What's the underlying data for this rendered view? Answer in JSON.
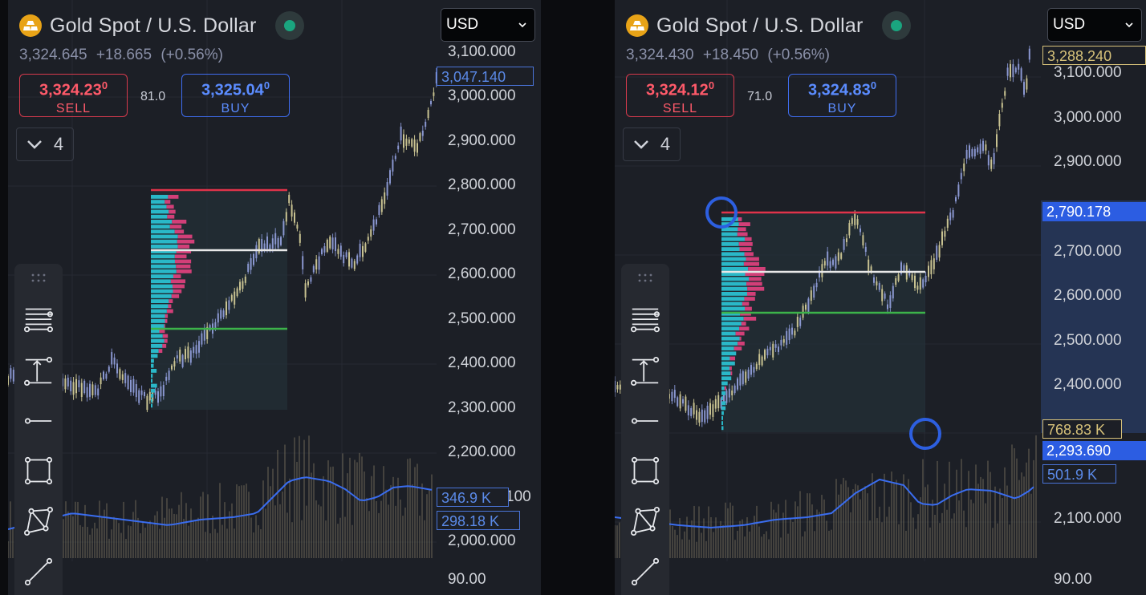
{
  "left": {
    "title": "Gold Spot / U.S. Dollar",
    "last_price": "3,324.645",
    "change": "+18.665",
    "change_pct": "(+0.56%)",
    "sell": {
      "price_main": "3,324.23",
      "price_sup": "0",
      "label": "SELL"
    },
    "spread": "81.0",
    "buy": {
      "price_main": "3,325.04",
      "price_sup": "0",
      "label": "BUY"
    },
    "collapse_count": "4",
    "currency": "USD",
    "y_ticks": [
      "3,100.000",
      "3,000.000",
      "2,900.000",
      "2,800.000",
      "2,700.000",
      "2,600.000",
      "2,500.000",
      "2,400.000",
      "2,300.000",
      "2,200.000",
      "2,000.000",
      "90.00"
    ],
    "partial_tick": "100",
    "tags": {
      "price_tag": "3,047.140",
      "volume_tag": "346.9 K",
      "volume_avg_tag": "298.18 K"
    }
  },
  "right": {
    "title": "Gold Spot / U.S. Dollar",
    "last_price": "3,324.430",
    "change": "+18.450",
    "change_pct": "(+0.56%)",
    "sell": {
      "price_main": "3,324.12",
      "price_sup": "0",
      "label": "SELL"
    },
    "spread": "71.0",
    "buy": {
      "price_main": "3,324.83",
      "price_sup": "0",
      "label": "BUY"
    },
    "collapse_count": "4",
    "currency": "USD",
    "y_ticks": [
      "3,100.000",
      "3,000.000",
      "2,900.000",
      "2,700.000",
      "2,600.000",
      "2,500.000",
      "2,400.000",
      "2,100.000",
      "90.00"
    ],
    "tags": {
      "price_tag": "3,288.240",
      "range_top": "2,790.178",
      "volume_tag": "768.83 K",
      "range_bottom": "2,293.690",
      "volume_avg_tag": "501.9 K"
    }
  },
  "colors": {
    "background": "#1c1f26",
    "sell": "#d73a4d",
    "buy": "#3f6df0",
    "poc": "#e8e8e8",
    "high_line": "#e0334a",
    "low_line": "#3cb34a",
    "volume_avg": "#3a6df0",
    "profile_up": "#2ab8c8",
    "profile_down": "#d23f78",
    "candles": "#c8c291"
  },
  "icons": [
    "gold-coin-icon",
    "status-dot-icon",
    "chevron-down-icon",
    "drag-handle-icon",
    "horizontal-lines-tool-icon",
    "vertical-range-tool-icon",
    "horizontal-line-tool-icon",
    "rectangle-tool-icon",
    "polygon-tool-icon",
    "trend-line-tool-icon"
  ]
}
